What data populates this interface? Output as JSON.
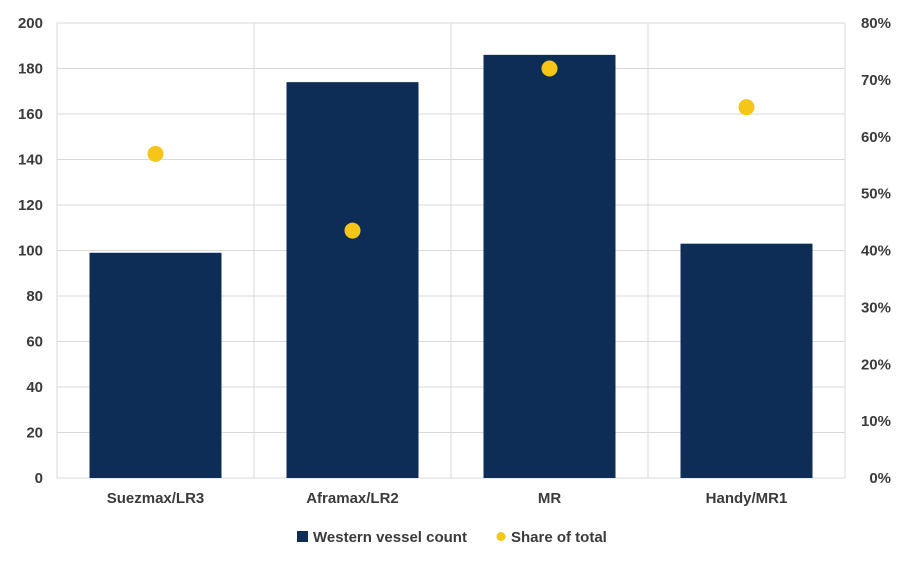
{
  "chart_data": {
    "type": "bar",
    "title": "",
    "xlabel": "",
    "ylabel": "",
    "categories": [
      "Suezmax/LR3",
      "Aframax/LR2",
      "MR",
      "Handy/MR1"
    ],
    "ylim": [
      0,
      200
    ],
    "y_ticks": [
      "0",
      "20",
      "40",
      "60",
      "80",
      "100",
      "120",
      "140",
      "160",
      "180",
      "200"
    ],
    "y2lim": [
      0,
      0.8
    ],
    "y2_ticks": [
      "0%",
      "10%",
      "20%",
      "30%",
      "40%",
      "50%",
      "60%",
      "70%",
      "80%"
    ],
    "grid": true,
    "legend_position": "bottom",
    "series": [
      {
        "name": "Western vessel count",
        "kind": "bar",
        "axis": "left",
        "color": "#0d2d57",
        "values": [
          99,
          174,
          186,
          103
        ]
      },
      {
        "name": "Share of total",
        "kind": "scatter",
        "axis": "right",
        "color": "#f5c518",
        "values": [
          0.57,
          0.435,
          0.72,
          0.652
        ]
      }
    ]
  }
}
